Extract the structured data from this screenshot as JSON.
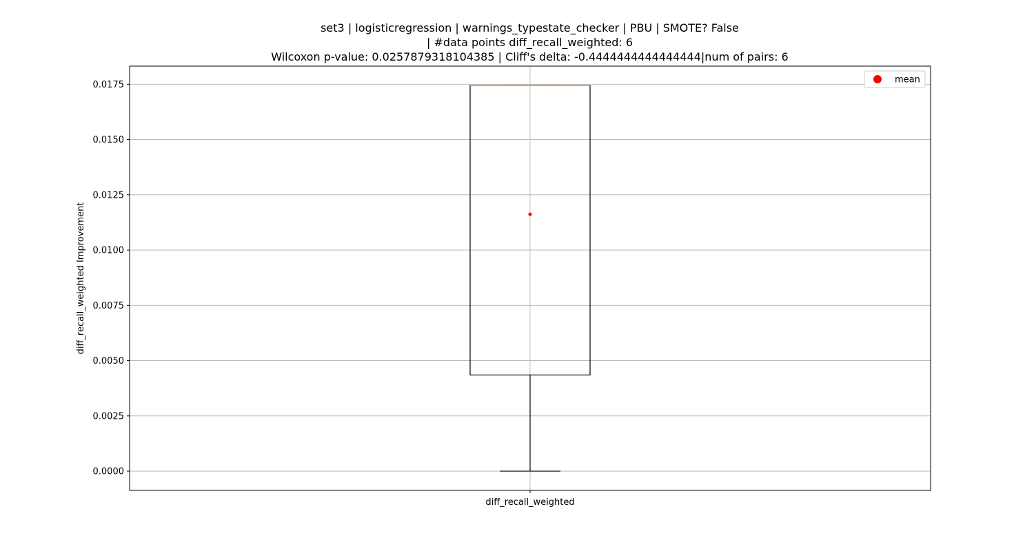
{
  "chart_data": {
    "type": "box",
    "title_lines": [
      "set3 | logisticregression | warnings_typestate_checker | PBU | SMOTE? False",
      "| #data points diff_recall_weighted: 6",
      "Wilcoxon p-value: 0.0257879318104385 | Cliff's delta: -0.4444444444444444|num of pairs: 6"
    ],
    "xlabel": "",
    "ylabel": "diff_recall_weighted Improvement",
    "categories": [
      "diff_recall_weighted"
    ],
    "box": {
      "whisker_low": 0.0,
      "q1": 0.00435,
      "median": 0.01745,
      "q3": 0.01745,
      "whisker_high": 0.01745,
      "mean": 0.01162
    },
    "ylim": [
      -0.00087,
      0.01832
    ],
    "yticks": [
      "0.0000",
      "0.0025",
      "0.0050",
      "0.0075",
      "0.0100",
      "0.0125",
      "0.0150",
      "0.0175"
    ],
    "ytick_values": [
      0.0,
      0.0025,
      0.005,
      0.0075,
      0.01,
      0.0125,
      0.015,
      0.0175
    ],
    "grid": true,
    "legend": {
      "position": "top-right",
      "entries": [
        {
          "label": "mean",
          "marker": "circle",
          "color": "#ff0000"
        }
      ]
    },
    "colors": {
      "box": "#000000",
      "median": "#ff7f0e",
      "mean": "#ff0000",
      "grid": "#b0b0b0"
    }
  }
}
